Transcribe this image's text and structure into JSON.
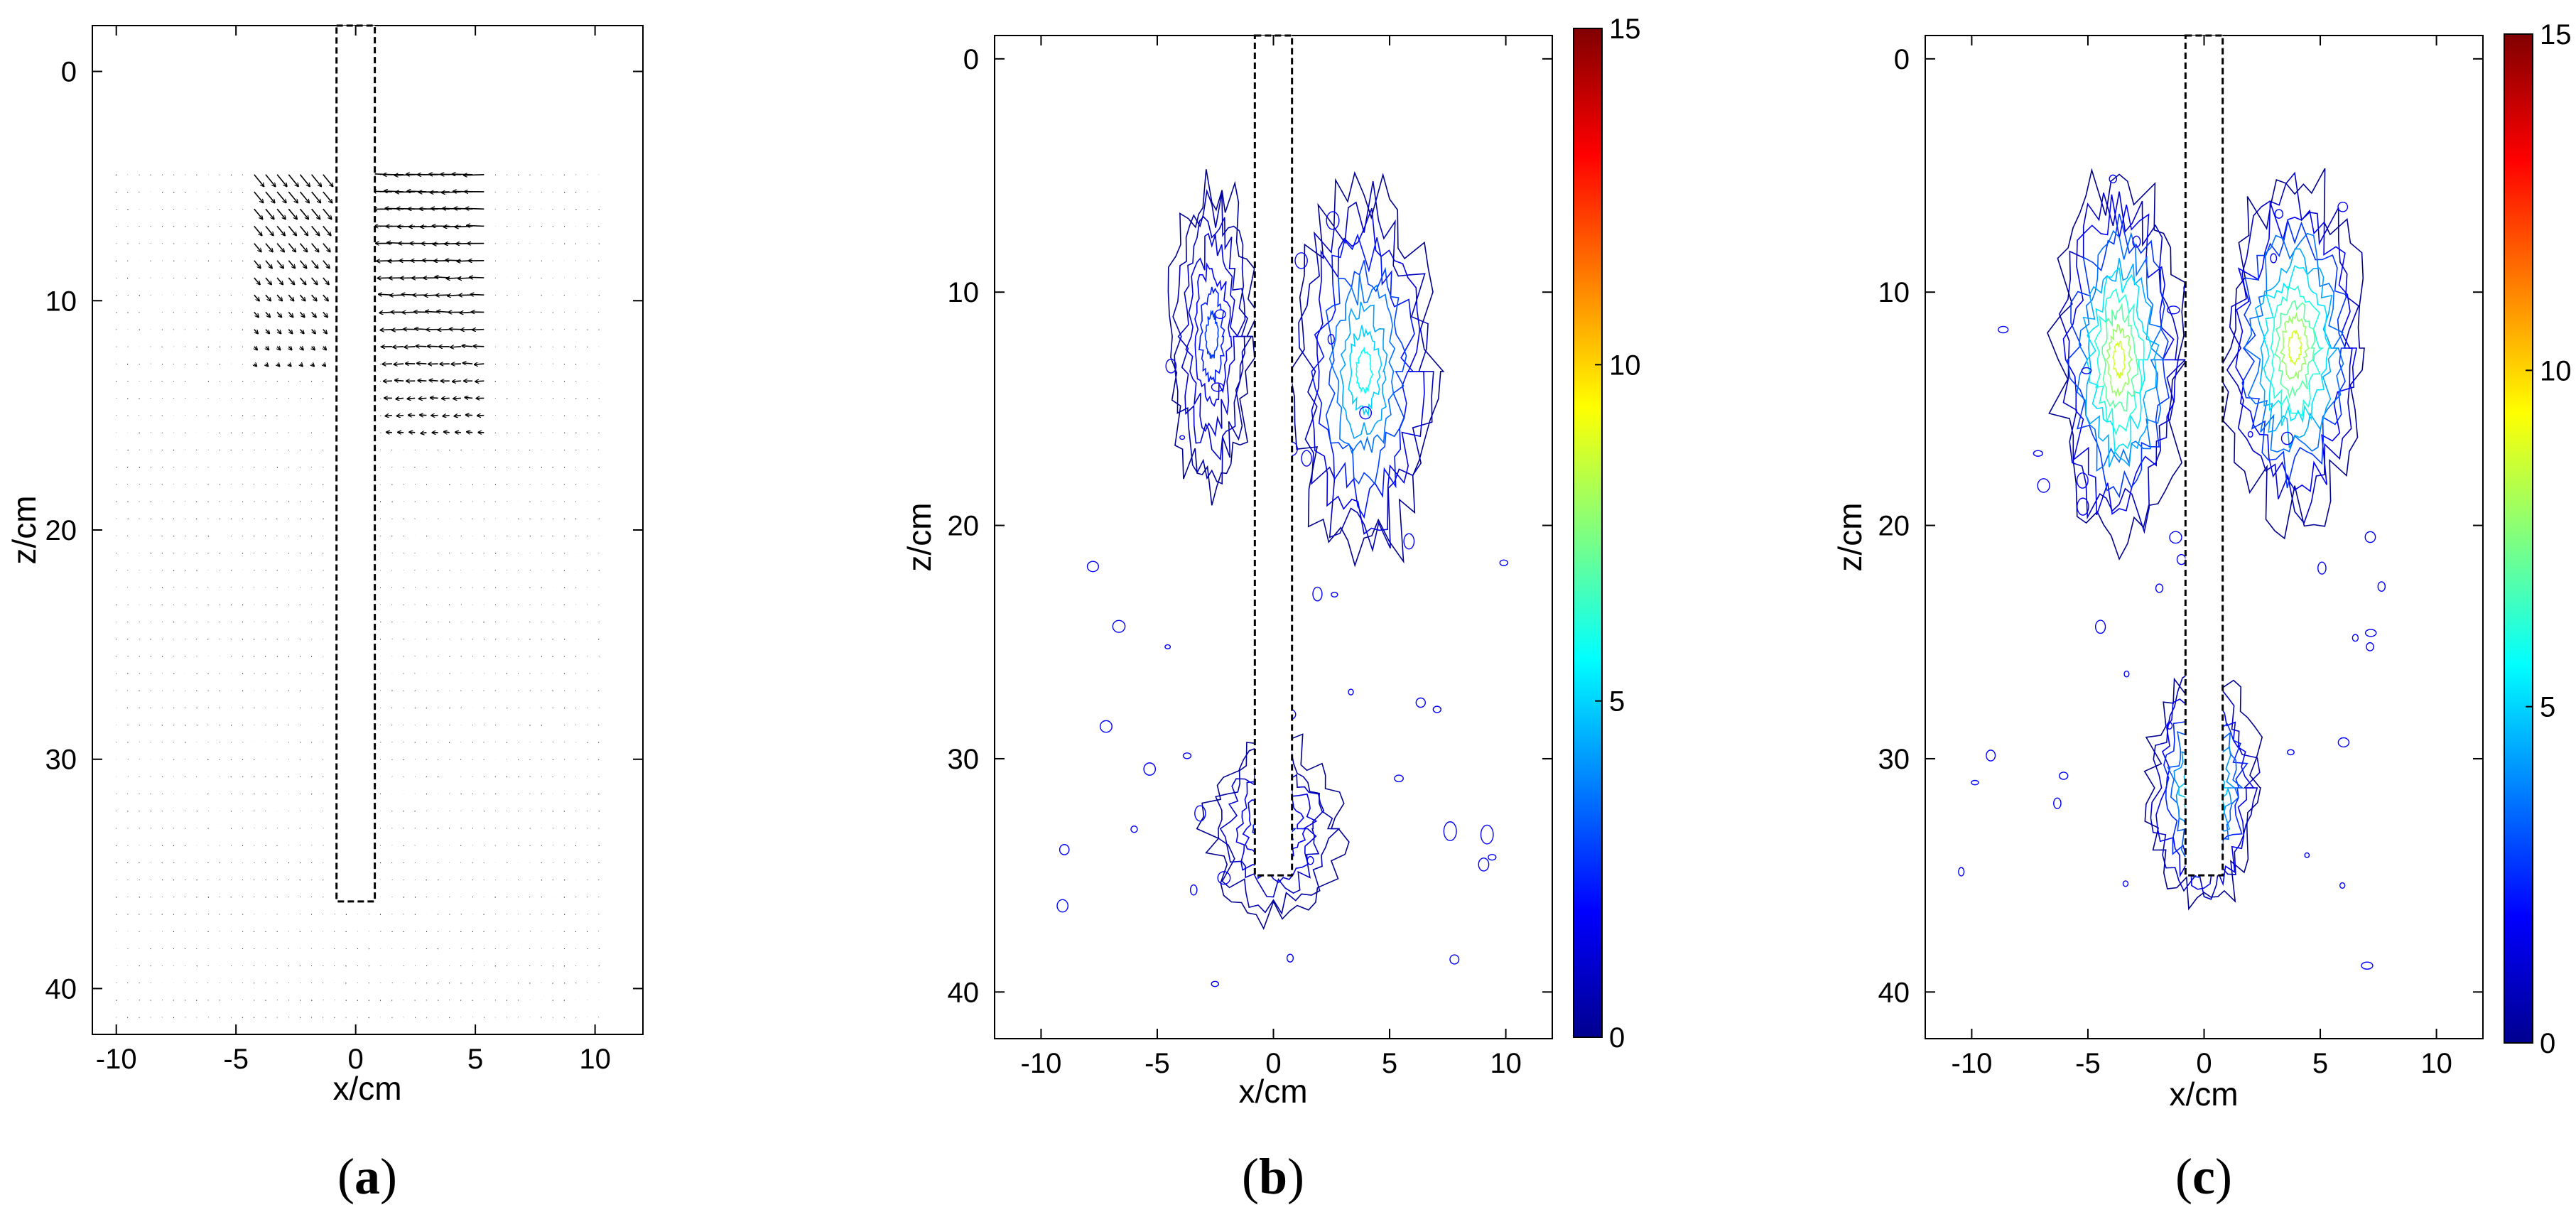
{
  "chart_data": [
    {
      "id": "a",
      "type": "vector-field",
      "panel_label": {
        "open": "(",
        "letter": "a",
        "close": ")"
      },
      "xlabel": "x/cm",
      "ylabel": "z/cm",
      "xlim": [
        -11,
        12
      ],
      "ylim": [
        42,
        -2
      ],
      "xticks": [
        -10,
        -5,
        0,
        5,
        10
      ],
      "yticks": [
        0,
        10,
        20,
        30,
        40
      ],
      "grid": false,
      "obstacle": {
        "x": [
          -0.8,
          0.8
        ],
        "z": [
          -2,
          36.2
        ]
      },
      "field_extent": {
        "x": [
          -10,
          10.6
        ],
        "z": [
          4.5,
          41.5
        ]
      },
      "jets": [
        {
          "side": "left",
          "x": [
            -4.5,
            -1.0
          ],
          "z": [
            4.5,
            13
          ],
          "direction": "downward-toward-obstacle"
        },
        {
          "side": "right",
          "x": [
            1.5,
            5.5
          ],
          "z": [
            4.5,
            16
          ],
          "direction": "leftward-toward-obstacle"
        }
      ]
    },
    {
      "id": "b",
      "type": "contour",
      "panel_label": {
        "open": "(",
        "letter": "b",
        "close": ")"
      },
      "xlabel": "x/cm",
      "ylabel": "z/cm",
      "xlim": [
        -12,
        12
      ],
      "ylim": [
        42,
        -1
      ],
      "xticks": [
        -10,
        -5,
        0,
        5,
        10
      ],
      "yticks": [
        0,
        10,
        20,
        30,
        40
      ],
      "colorbar": {
        "min": 0,
        "max": 15,
        "ticks": [
          0,
          5,
          10,
          15
        ],
        "colormap": "jet"
      },
      "obstacle": {
        "x": [
          -0.8,
          0.8
        ],
        "z": [
          -1,
          35
        ]
      },
      "regions": [
        {
          "name": "upper-left",
          "x": [
            -4.5,
            -0.8
          ],
          "z": [
            4.8,
            19
          ],
          "level": 2
        },
        {
          "name": "upper-right",
          "x": [
            0.8,
            7
          ],
          "z": [
            4.8,
            22
          ],
          "level": 4
        },
        {
          "name": "lower-tip",
          "x": [
            -3,
            3
          ],
          "z": [
            29,
            37
          ],
          "level": 2
        }
      ]
    },
    {
      "id": "c",
      "type": "contour",
      "panel_label": {
        "open": "(",
        "letter": "c",
        "close": ")"
      },
      "xlabel": "x/cm",
      "ylabel": "z/cm",
      "xlim": [
        -12,
        12
      ],
      "ylim": [
        42,
        -1
      ],
      "xticks": [
        -10,
        -5,
        0,
        5,
        10
      ],
      "yticks": [
        0,
        10,
        20,
        30,
        40
      ],
      "colorbar": {
        "min": 0,
        "max": 15,
        "ticks": [
          0,
          5,
          10,
          15
        ],
        "colormap": "jet"
      },
      "obstacle": {
        "x": [
          -0.8,
          0.8
        ],
        "z": [
          -1,
          35
        ]
      },
      "regions": [
        {
          "name": "upper-left",
          "x": [
            -6.5,
            -0.8
          ],
          "z": [
            4.8,
            21
          ],
          "level": 6
        },
        {
          "name": "upper-right",
          "x": [
            0.8,
            7
          ],
          "z": [
            4.8,
            20
          ],
          "level": 6
        },
        {
          "name": "lower-tip",
          "x": [
            -2.5,
            2.5
          ],
          "z": [
            26,
            36.5
          ],
          "level": 5
        }
      ]
    }
  ]
}
